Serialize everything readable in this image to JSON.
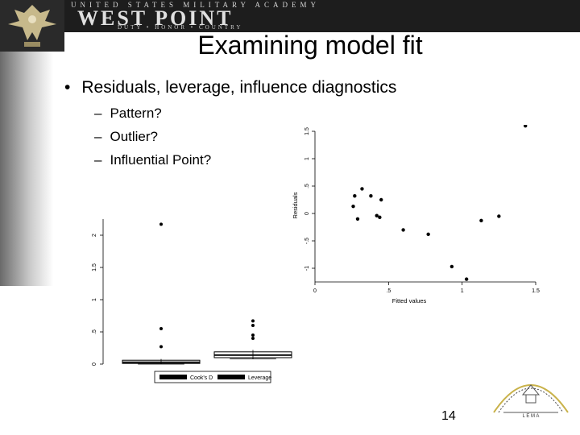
{
  "header": {
    "top_text": "UNITED STATES MILITARY ACADEMY",
    "main_text": "WEST POINT",
    "sub_text": "DUTY • HONOR • COUNTRY"
  },
  "slide": {
    "title": "Examining model fit",
    "bullet": "Residuals, leverage, influence diagnostics",
    "subitems": [
      "Pattern?",
      "Outlier?",
      "Influential Point?"
    ],
    "page_number": "14"
  },
  "seal": {
    "bottom_text": "L E M A"
  },
  "chart_data": [
    {
      "type": "scatter",
      "title": "",
      "xlabel": "Fitted values",
      "ylabel": "Residuals",
      "xlim": [
        0,
        1.5
      ],
      "ylim": [
        -1.25,
        1.5
      ],
      "x_ticks": [
        "0",
        ".5",
        "1",
        "1.5"
      ],
      "y_ticks": [
        "1.5",
        "1",
        ".5",
        "0",
        "-.5",
        "-1"
      ],
      "points": [
        {
          "x": 0.26,
          "y": 0.13
        },
        {
          "x": 0.27,
          "y": 0.32
        },
        {
          "x": 0.29,
          "y": -0.1
        },
        {
          "x": 0.32,
          "y": 0.45
        },
        {
          "x": 0.38,
          "y": 0.32
        },
        {
          "x": 0.42,
          "y": -0.04
        },
        {
          "x": 0.44,
          "y": -0.07
        },
        {
          "x": 0.45,
          "y": 0.25
        },
        {
          "x": 0.6,
          "y": -0.3
        },
        {
          "x": 0.77,
          "y": -0.38
        },
        {
          "x": 0.93,
          "y": -0.97
        },
        {
          "x": 1.03,
          "y": -1.2
        },
        {
          "x": 1.13,
          "y": -0.13
        },
        {
          "x": 1.25,
          "y": -0.05
        },
        {
          "x": 1.43,
          "y": 1.6
        }
      ],
      "colors": {
        "marker": "#000000",
        "axis": "#000000"
      }
    },
    {
      "type": "box",
      "title": "",
      "xlabel": "",
      "ylabel": "",
      "ylim": [
        0,
        2.25
      ],
      "y_ticks": [
        "0",
        ".5",
        "1",
        "1.5",
        "2"
      ],
      "legend_position": "bottom",
      "series": [
        {
          "name": "Cook's D",
          "median": 0.03,
          "q1": 0.01,
          "q3": 0.06,
          "whisker_low": 0.0,
          "whisker_high": 0.08,
          "outliers": [
            0.27,
            0.55,
            2.17
          ]
        },
        {
          "name": "Leverage",
          "median": 0.14,
          "q1": 0.1,
          "q3": 0.19,
          "whisker_low": 0.08,
          "whisker_high": 0.22,
          "outliers": [
            0.4,
            0.45,
            0.6,
            0.67
          ]
        }
      ],
      "colors": {
        "fill": "#000000"
      }
    }
  ]
}
